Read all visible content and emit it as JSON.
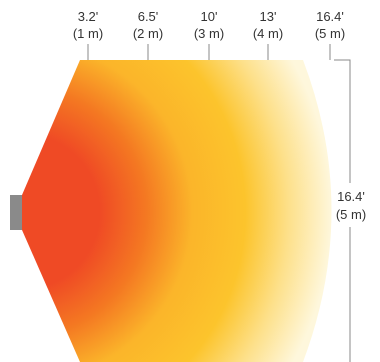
{
  "colors": {
    "heat_near": "#ef4a25",
    "heat_mid": "#f99a22",
    "heat_far": "#fcc12a",
    "heat_edge": "#fdf0c0",
    "heater_body": "#8a8a8a",
    "tick_line": "#888888",
    "text": "#333333"
  },
  "top_scale": [
    {
      "feet": "3.2'",
      "meters": "(1 m)"
    },
    {
      "feet": "6.5'",
      "meters": "(2 m)"
    },
    {
      "feet": "10'",
      "meters": "(3 m)"
    },
    {
      "feet": "13'",
      "meters": "(4 m)"
    },
    {
      "feet": "16.4'",
      "meters": "(5 m)"
    }
  ],
  "side_scale": {
    "feet": "16.4'",
    "meters": "(5 m)"
  }
}
